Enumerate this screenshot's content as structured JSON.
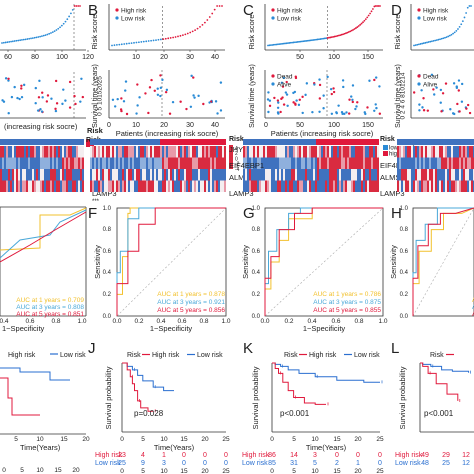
{
  "colors": {
    "high": "#e0193c",
    "low": "#2a8bd6",
    "curve_low": "#2a6fd0",
    "hm_red": "#d92b40",
    "hm_blue": "#3f72bf",
    "hm_white": "#f4eef0",
    "auc1": "#f2c12e",
    "auc3": "#4aa8d8",
    "auc5": "#e0193c"
  },
  "panel_letters": [
    "B",
    "C",
    "D",
    "F",
    "G",
    "H",
    "J",
    "K",
    "L"
  ],
  "legend": {
    "high_risk": "High risk",
    "low_risk": "Low risk",
    "high_risk_lc": "High risk",
    "low_risk_lc": "Low risk",
    "dead": "Dead",
    "alive": "Alive",
    "risk": "Risk",
    "risk_box": "Risk",
    "low": "low",
    "high": "high"
  },
  "axis_labels": {
    "risk_score": "Risk score",
    "survival_time": "Survival time (years)",
    "patients": "Patients (increasing risk socre)",
    "patients_cut": "(increasing risk socre)",
    "specificity": "1−Specificity",
    "sensitivity": "Sensitivity",
    "survival_prob": "Survival probability",
    "time_years": "Time(Years)"
  },
  "genes": [
    "JHY",
    "EIF4EBP1",
    "ALMS1-IT1",
    "LAMP3"
  ],
  "stars": "***",
  "surv_ticks_b": "0 5 10152025",
  "surv_ticks_d": "0 2 4 6 8101214",
  "chart_data": [
    {
      "type": "scatter",
      "panel": "B",
      "title": "",
      "xlabel": "",
      "ylabel": "Risk score",
      "x_ticks": [
        "10",
        "20",
        "30",
        "40"
      ],
      "series": [
        {
          "name": "High risk",
          "x_range": [
            22,
            46
          ],
          "y_range": [
            0.55,
            2.4
          ]
        },
        {
          "name": "Low risk",
          "x_range": [
            1,
            21
          ],
          "y_range": [
            0.05,
            0.5
          ]
        }
      ],
      "xlim": [
        0,
        47
      ]
    },
    {
      "type": "scatter",
      "panel": "B",
      "ylabel": "Survival time (years)",
      "xlabel": "Patients (increasing risk socre)",
      "y_ticks": [
        "0",
        "5",
        "10",
        "15",
        "20",
        "25"
      ],
      "x_ticks": [
        "0",
        "10",
        "20",
        "30",
        "40"
      ],
      "series": [
        {
          "name": "Dead"
        },
        {
          "name": "Alive"
        }
      ]
    },
    {
      "type": "scatter",
      "panel": "C",
      "ylabel": "Risk score",
      "x_ticks": [
        "50",
        "100",
        "150"
      ],
      "series": [
        {
          "name": "High risk"
        },
        {
          "name": "Low risk"
        }
      ],
      "xlim": [
        0,
        170
      ]
    },
    {
      "type": "scatter",
      "panel": "C",
      "ylabel": "Survival time (years)",
      "xlabel": "Patients (increasing risk socre)",
      "y_ticks": [
        "0",
        "5",
        "10",
        "15",
        "20",
        "25"
      ],
      "x_ticks": [
        "0",
        "50",
        "100",
        "150"
      ],
      "series": [
        {
          "name": "Dead"
        },
        {
          "name": "Alive"
        }
      ]
    },
    {
      "type": "scatter",
      "panel": "D",
      "ylabel": "Risk score",
      "series": [
        {
          "name": "High risk"
        },
        {
          "name": "Low risk"
        }
      ]
    },
    {
      "type": "scatter",
      "panel": "A (cut)",
      "xlabel": "(increasing risk socre)",
      "x_ticks": [
        "60",
        "80",
        "100",
        "120"
      ]
    },
    {
      "type": "heatmap",
      "panels": [
        "A",
        "B",
        "C",
        "D"
      ],
      "rows": [
        "JHY",
        "EIF4EBP1",
        "ALMS1-IT1",
        "LAMP3"
      ],
      "legend_ticks_b": [
        "4",
        "2",
        "0",
        "-2",
        "-4"
      ],
      "legend_ticks_c": [
        "2",
        "1",
        "0",
        "-1",
        "-2"
      ]
    },
    {
      "type": "line",
      "panel": "E (cut)",
      "x_ticks": [
        "0.4",
        "0.6",
        "0.8",
        "1.0"
      ],
      "xlabel": "1−Specificity",
      "auc": [
        {
          "name": "AUC at 1 years = 0.709",
          "value": 0.709
        },
        {
          "name": "AUC at 3 years = 0.808",
          "value": 0.808
        },
        {
          "name": "AUC at 5 years = 0.851",
          "value": 0.851
        }
      ]
    },
    {
      "type": "line",
      "panel": "F",
      "xlabel": "1−Specificity",
      "ylabel": "Sensitivity",
      "x_ticks": [
        "0.0",
        "0.2",
        "0.4",
        "0.6",
        "0.8",
        "1.0"
      ],
      "y_ticks": [
        "0.0",
        "0.2",
        "0.4",
        "0.6",
        "0.8",
        "1.0"
      ],
      "auc": [
        {
          "name": "AUC at 1 years = 0.878",
          "value": 0.878
        },
        {
          "name": "AUC at 3 years = 0.921",
          "value": 0.921
        },
        {
          "name": "AUC at 5 years = 0.856",
          "value": 0.856
        }
      ]
    },
    {
      "type": "line",
      "panel": "G",
      "xlabel": "1−Specificity",
      "ylabel": "Sensitivity",
      "x_ticks": [
        "0.0",
        "0.2",
        "0.4",
        "0.6",
        "0.8",
        "1.0"
      ],
      "y_ticks": [
        "0.0",
        "0.2",
        "0.4",
        "0.6",
        "0.8",
        "1.0"
      ],
      "auc": [
        {
          "name": "AUC at 1 years = 0.786",
          "value": 0.786
        },
        {
          "name": "AUC at 3 years = 0.875",
          "value": 0.875
        },
        {
          "name": "AUC at 5 years = 0.855",
          "value": 0.855
        }
      ]
    },
    {
      "type": "line",
      "panel": "H",
      "xlabel": "1−Specificity",
      "ylabel": "Sensitivity",
      "x_ticks": [
        "0.0",
        "0.2",
        "0.4",
        "0.6",
        "0.8",
        "1.0"
      ],
      "y_ticks": [
        "0.0",
        "0.2",
        "0.4",
        "0.6",
        "0.8",
        "1.0"
      ],
      "auc": [
        {
          "name": "AUC at 1 years",
          "value": null
        },
        {
          "name": "AUC at 3 years",
          "value": null
        },
        {
          "name": "AUC at 5 years",
          "value": null
        }
      ]
    },
    {
      "type": "line",
      "panel": "I (cut)",
      "xlabel": "Time(Years)",
      "x_ticks": [
        "5",
        "10",
        "15",
        "20"
      ],
      "series": [
        {
          "name": "High risk"
        },
        {
          "name": "Low risk"
        }
      ],
      "risk_table": {
        "x_ticks": [
          "0",
          "5",
          "10",
          "15",
          "20"
        ]
      }
    },
    {
      "type": "line",
      "panel": "J",
      "xlabel": "Time(Years)",
      "ylabel": "Survival probability",
      "x_ticks": [
        "0",
        "5",
        "10",
        "15",
        "20",
        "25"
      ],
      "y_ticks": [
        "0.0",
        "0.25",
        "0.50",
        "0.75",
        "1.00"
      ],
      "pvalue": "p=0.028",
      "series": [
        {
          "name": "High risk"
        },
        {
          "name": "Low risk"
        }
      ],
      "risk_table": {
        "rows": [
          {
            "name": "High risk",
            "values": [
              "23",
              "4",
              "1",
              "0",
              "0",
              "0"
            ]
          },
          {
            "name": "Low risk",
            "values": [
              "25",
              "9",
              "3",
              "0",
              "0",
              "0"
            ]
          }
        ],
        "x_ticks": [
          "0",
          "5",
          "10",
          "15",
          "20",
          "25"
        ]
      }
    },
    {
      "type": "line",
      "panel": "K",
      "xlabel": "Time(Years)",
      "ylabel": "Survival probability",
      "x_ticks": [
        "0",
        "5",
        "10",
        "15",
        "20",
        "25"
      ],
      "y_ticks": [
        "0.00",
        "0.25",
        "0.50",
        "0.75",
        "1.00"
      ],
      "pvalue": "p<0.001",
      "series": [
        {
          "name": "High risk"
        },
        {
          "name": "Low risk"
        }
      ],
      "risk_table": {
        "rows": [
          {
            "name": "High risk",
            "values": [
              "86",
              "14",
              "3",
              "0",
              "0",
              "0"
            ]
          },
          {
            "name": "Low risk",
            "values": [
              "85",
              "31",
              "5",
              "2",
              "1",
              "0"
            ]
          }
        ],
        "x_ticks": [
          "0",
          "5",
          "10",
          "15",
          "20",
          "25"
        ]
      }
    },
    {
      "type": "line",
      "panel": "L",
      "ylabel": "Survival probability",
      "y_ticks": [
        "0.0",
        "0.25",
        "0.50",
        "0.75",
        "1.00"
      ],
      "pvalue": "p<0.001",
      "series": [
        {
          "name": "High risk"
        },
        {
          "name": "Low risk"
        }
      ],
      "risk_table": {
        "rows": [
          {
            "name": "High risk",
            "values": [
              "49",
              "29",
              "12"
            ]
          },
          {
            "name": "Low risk",
            "values": [
              "48",
              "25",
              "12"
            ]
          }
        ]
      }
    }
  ]
}
